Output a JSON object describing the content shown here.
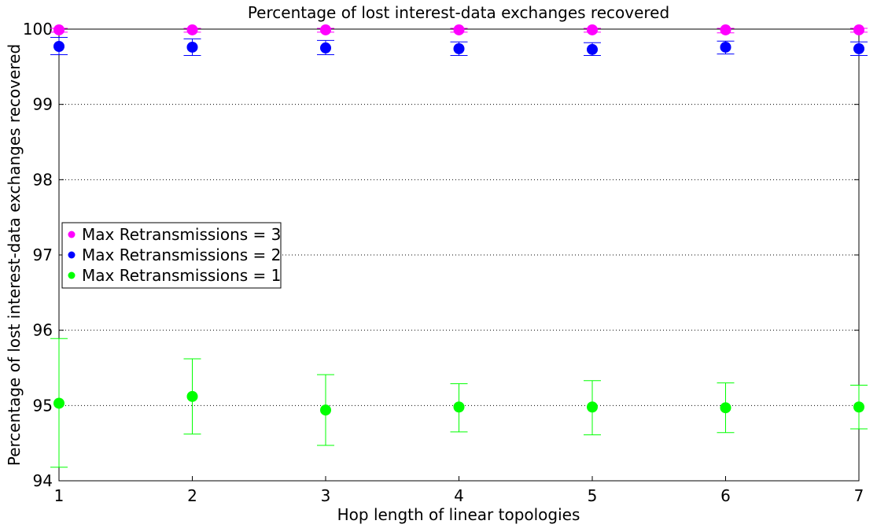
{
  "chart_data": {
    "type": "scatter",
    "title": "Percentage of lost interest-data exchanges recovered",
    "xlabel": "Hop length of linear topologies",
    "ylabel": "Percentage of lost interest-data exchanges recovered",
    "xlim": [
      1,
      7
    ],
    "ylim": [
      94,
      100
    ],
    "xticks": [
      1,
      2,
      3,
      4,
      5,
      6,
      7
    ],
    "yticks": [
      94,
      95,
      96,
      97,
      98,
      99,
      100
    ],
    "grid": "horizontal dotted",
    "legend_position": "center-left",
    "x": [
      1,
      2,
      3,
      4,
      5,
      6,
      7
    ],
    "series": [
      {
        "name": "Max Retransmissions = 3",
        "color": "#ff00ff",
        "values": [
          99.99,
          99.99,
          99.99,
          99.99,
          99.99,
          99.99,
          99.99
        ],
        "err_low": [
          99.96,
          99.96,
          99.96,
          99.96,
          99.96,
          99.95,
          99.96
        ],
        "err_high": [
          100.01,
          100.01,
          100.01,
          100.01,
          100.01,
          100.01,
          100.01
        ]
      },
      {
        "name": "Max Retransmissions = 2",
        "color": "#0000ff",
        "values": [
          99.77,
          99.76,
          99.75,
          99.74,
          99.73,
          99.76,
          99.74
        ],
        "err_low": [
          99.66,
          99.65,
          99.66,
          99.65,
          99.65,
          99.67,
          99.65
        ],
        "err_high": [
          99.89,
          99.87,
          99.85,
          99.83,
          99.82,
          99.84,
          99.83
        ]
      },
      {
        "name": "Max Retransmissions = 1",
        "color": "#00ff00",
        "values": [
          95.03,
          95.12,
          94.94,
          94.98,
          94.98,
          94.97,
          94.98
        ],
        "err_low": [
          94.18,
          94.62,
          94.47,
          94.65,
          94.61,
          94.64,
          94.69
        ],
        "err_high": [
          95.89,
          95.62,
          95.41,
          95.29,
          95.33,
          95.3,
          95.27
        ]
      }
    ]
  }
}
